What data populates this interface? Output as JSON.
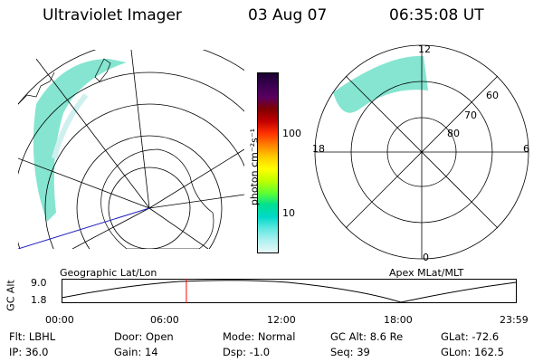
{
  "header": {
    "title": "Ultraviolet Imager",
    "date": "03 Aug 07",
    "time": "06:35:08 UT"
  },
  "maps": {
    "left_label": "Geographic Lat/Lon",
    "right_label": "Apex MLat/MLT"
  },
  "polar_plot": {
    "mlt_labels": {
      "top": "12",
      "bottom": "0",
      "left": "18",
      "right": "6"
    },
    "lat_labels": [
      "60",
      "70",
      "80"
    ]
  },
  "colorbar": {
    "unit_label": "photon cm⁻²s⁻¹",
    "ticks": [
      "100",
      "10"
    ],
    "colors": [
      "#1a0030",
      "#3a0050",
      "#5a0060",
      "#800000",
      "#c00000",
      "#ff3000",
      "#ff8000",
      "#ffcc00",
      "#ffff00",
      "#c0ff00",
      "#60ff30",
      "#00e090",
      "#00d8c8",
      "#60e8e0",
      "#b0f0f0",
      "#e8f8f8"
    ]
  },
  "altitude_strip": {
    "axis_label": "GC Alt",
    "y_ticks": [
      "9.0",
      "1.8"
    ],
    "x_ticks": [
      "00:00",
      "06:00",
      "12:00",
      "18:00",
      "23:59"
    ],
    "current_marker_hour": 6.58,
    "marker_color": "#ff0000"
  },
  "info": {
    "flt": "Flt: LBHL",
    "ip": "IP: 36.0",
    "door": "Door: Open",
    "gain": "Gain: 14",
    "mode": "Mode: Normal",
    "dsp": "Dsp:   -1.0",
    "gcalt": "GC Alt: 8.6 Re",
    "seq": "Seq: 39",
    "glat": "GLat: -72.6",
    "glon": "GLon: 162.5"
  }
}
